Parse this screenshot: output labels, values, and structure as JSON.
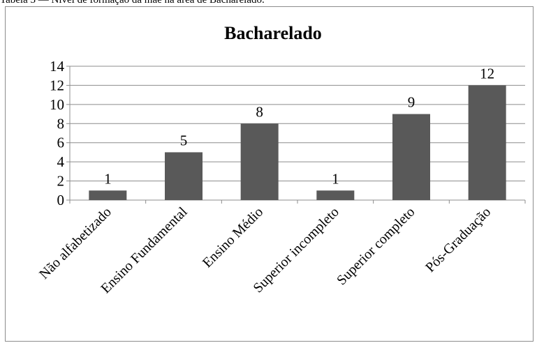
{
  "caption": "Tabela 3 — Nível de formação da mãe na área de Bacharelado.",
  "chart_data": {
    "type": "bar",
    "title": "Bacharelado",
    "categories": [
      "Não alfabetizado",
      "Ensino Fundamental",
      "Ensino Médio",
      "Superior incompleto",
      "Superior completo",
      "Pós-Graduação"
    ],
    "values": [
      1,
      5,
      8,
      1,
      9,
      12
    ],
    "data_labels": [
      "1",
      "5",
      "8",
      "1",
      "9",
      "12"
    ],
    "y_ticks": [
      "0",
      "2",
      "4",
      "6",
      "8",
      "10",
      "12",
      "14"
    ],
    "ylim": [
      0,
      14
    ],
    "xlabel": "",
    "ylabel": "",
    "grid": true,
    "legend": "none",
    "bar_color": "#595959",
    "grid_color": "#8c8c8c"
  }
}
